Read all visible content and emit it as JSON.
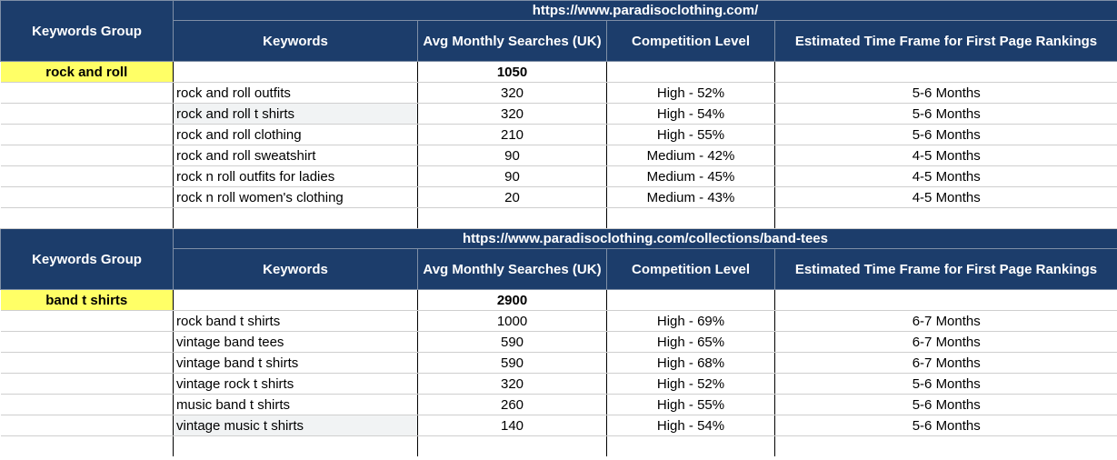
{
  "sections": [
    {
      "url": "https://www.paradisoclothing.com/",
      "group_header": "Keywords Group",
      "columns": {
        "keywords": "Keywords",
        "searches": "Avg Monthly Searches (UK)",
        "competition": "Competition Level",
        "timeframe": "Estimated Time Frame for First Page Rankings"
      },
      "group_name": "rock and roll",
      "total": "1050",
      "rows": [
        {
          "keyword": "rock and roll outfits",
          "searches": "320",
          "competition": "High - 52%",
          "timeframe": "5-6 Months"
        },
        {
          "keyword": "rock and roll t shirts",
          "searches": "320",
          "competition": "High - 54%",
          "timeframe": "5-6 Months"
        },
        {
          "keyword": "rock and roll clothing",
          "searches": "210",
          "competition": "High - 55%",
          "timeframe": "5-6 Months"
        },
        {
          "keyword": "rock and roll sweatshirt",
          "searches": "90",
          "competition": "Medium - 42%",
          "timeframe": "4-5 Months"
        },
        {
          "keyword": "rock n roll outfits for ladies",
          "searches": "90",
          "competition": "Medium - 45%",
          "timeframe": "4-5 Months"
        },
        {
          "keyword": "rock n roll women's clothing",
          "searches": "20",
          "competition": "Medium - 43%",
          "timeframe": "4-5 Months"
        }
      ]
    },
    {
      "url": "https://www.paradisoclothing.com/collections/band-tees",
      "group_header": "Keywords Group",
      "columns": {
        "keywords": "Keywords",
        "searches": "Avg Monthly Searches (UK)",
        "competition": "Competition Level",
        "timeframe": "Estimated Time Frame for First Page Rankings"
      },
      "group_name": "band t shirts",
      "total": "2900",
      "rows": [
        {
          "keyword": "rock band t shirts",
          "searches": "1000",
          "competition": "High - 69%",
          "timeframe": "6-7 Months"
        },
        {
          "keyword": "vintage band tees",
          "searches": "590",
          "competition": "High - 65%",
          "timeframe": "6-7 Months"
        },
        {
          "keyword": "vintage band t shirts",
          "searches": "590",
          "competition": "High - 68%",
          "timeframe": "6-7 Months"
        },
        {
          "keyword": "vintage rock t shirts",
          "searches": "320",
          "competition": "High - 52%",
          "timeframe": "5-6 Months"
        },
        {
          "keyword": "music band t shirts",
          "searches": "260",
          "competition": "High - 55%",
          "timeframe": "5-6 Months"
        },
        {
          "keyword": "vintage music t shirts",
          "searches": "140",
          "competition": "High - 54%",
          "timeframe": "5-6 Months"
        }
      ]
    }
  ]
}
